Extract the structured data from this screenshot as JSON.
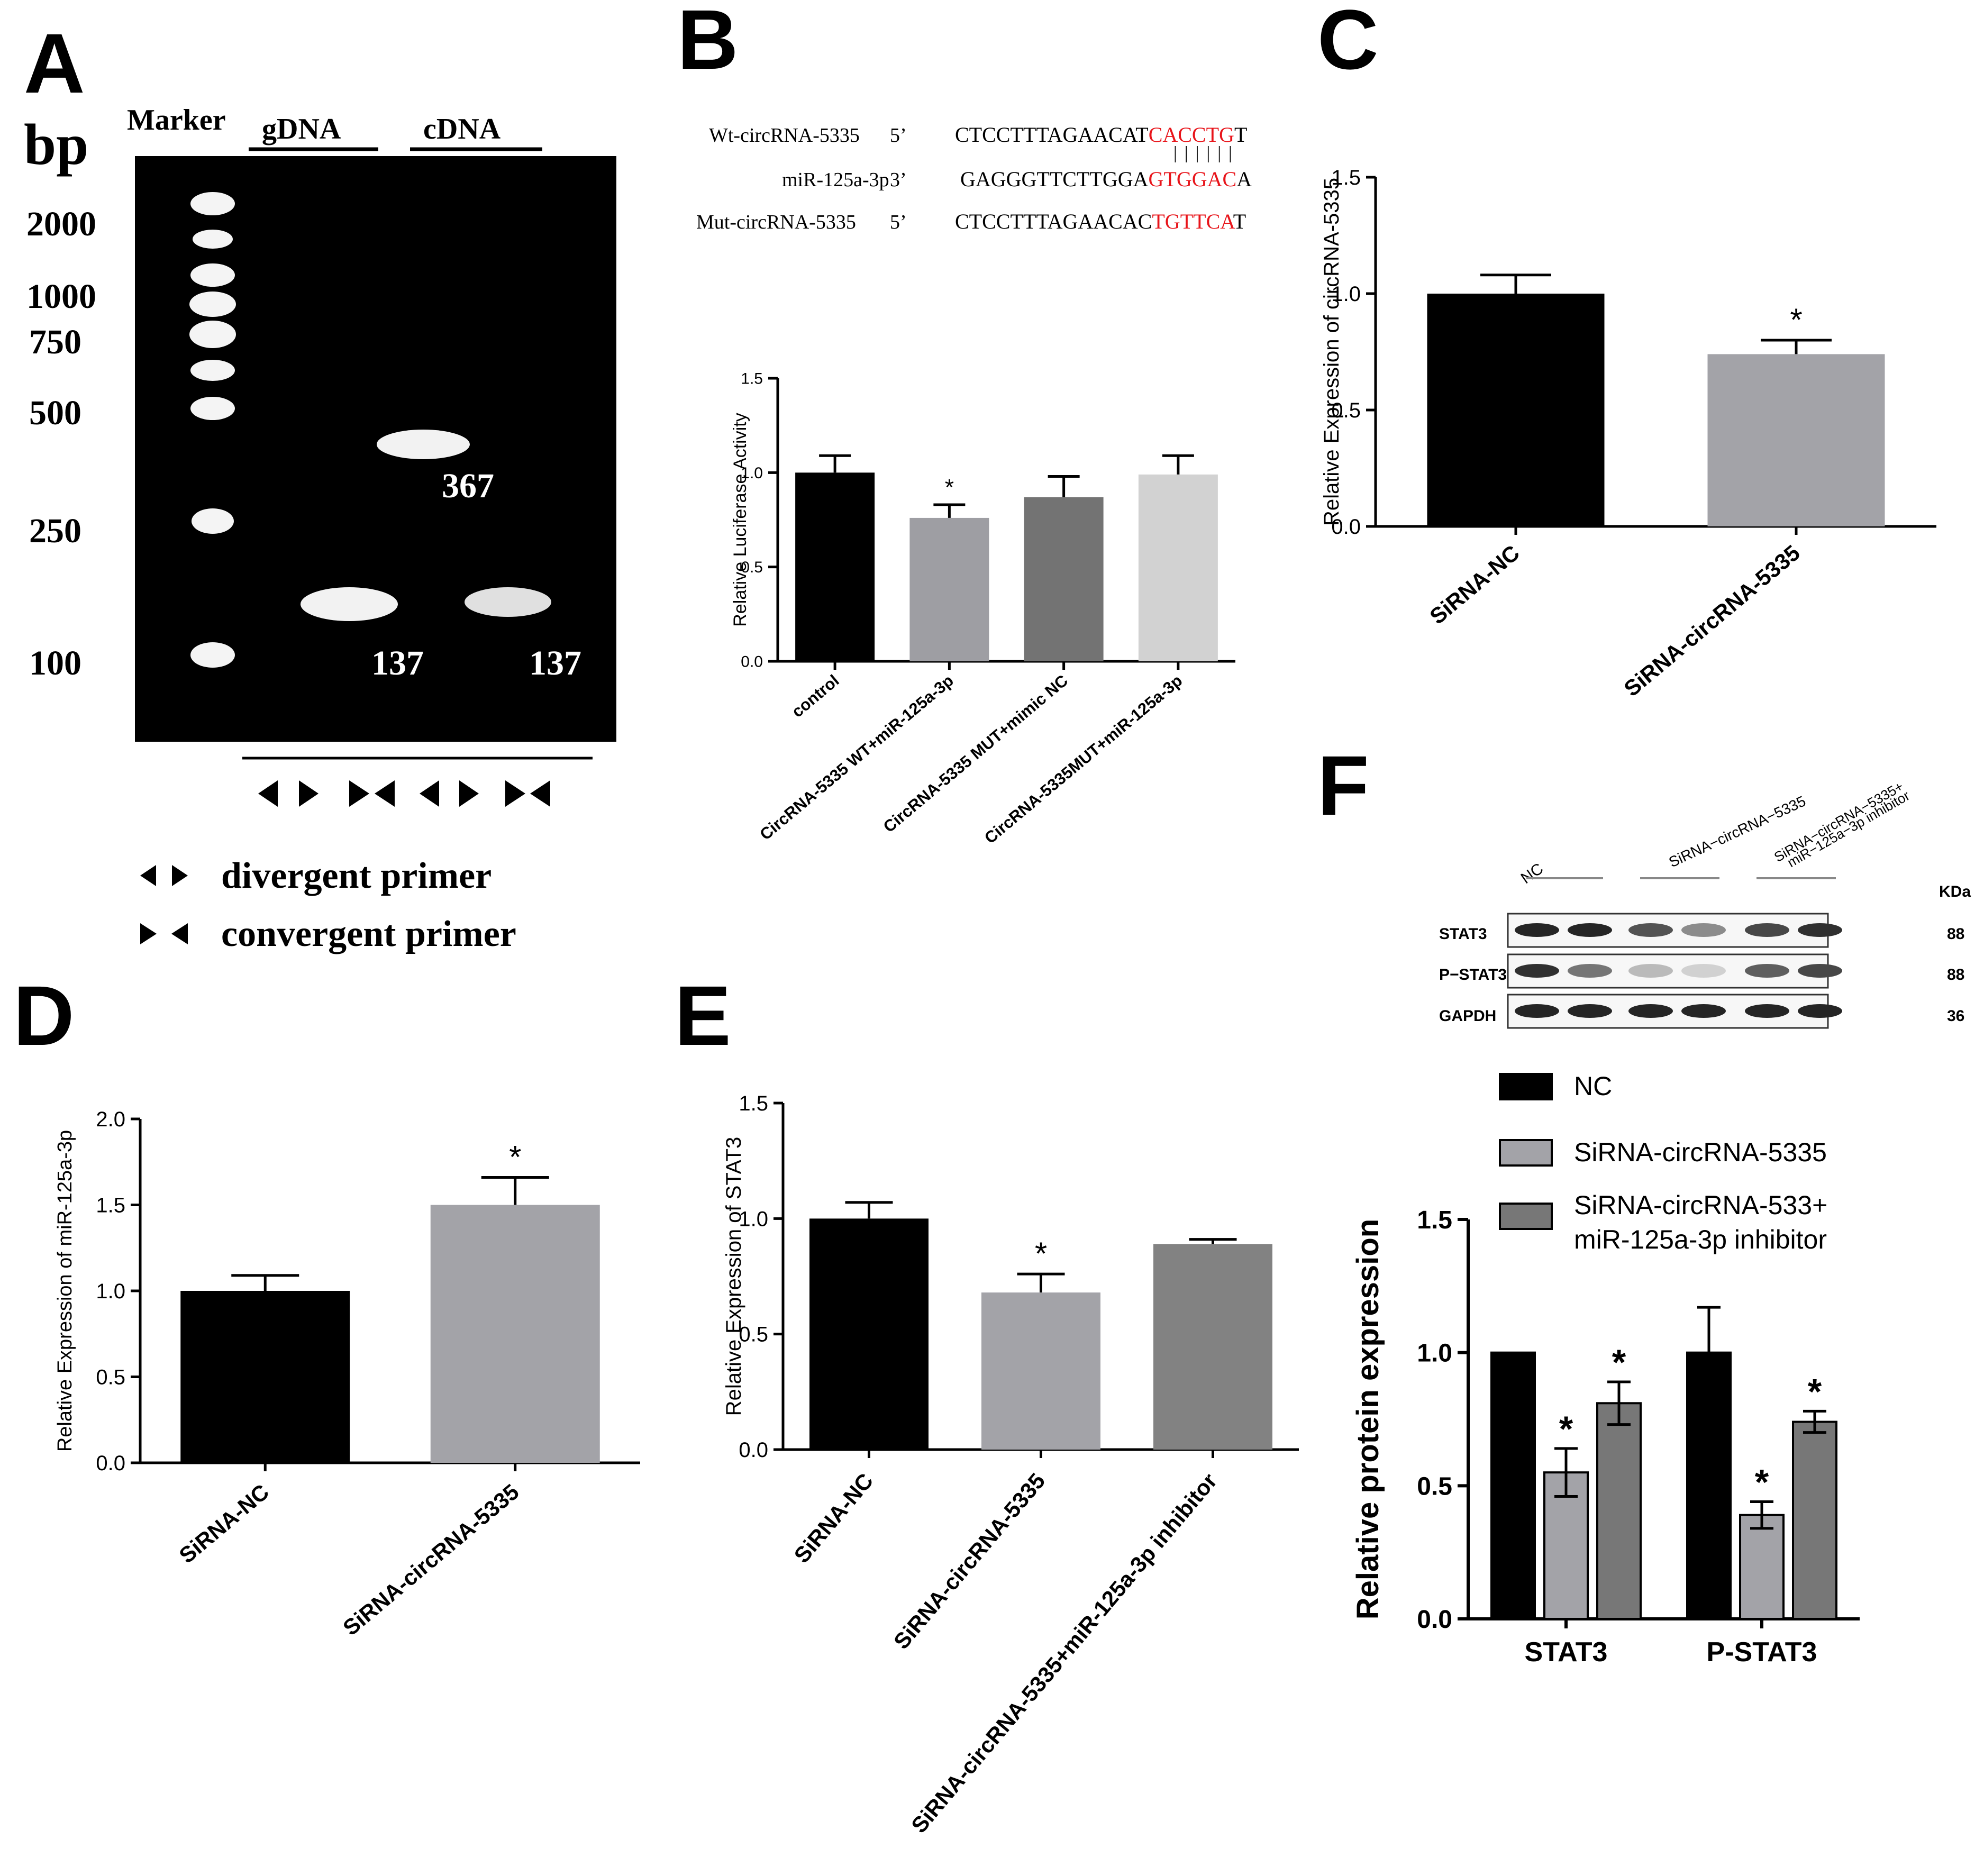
{
  "panels": {
    "A": {
      "letter": "A",
      "bp_label": "bp",
      "marker_label": "Marker",
      "gdna_label": "gDNA",
      "cdna_label": "cDNA",
      "ladder": [
        "2000",
        "1000",
        "750",
        "500",
        "250",
        "100"
      ],
      "band_labels": [
        "367",
        "137",
        "137"
      ],
      "legend": {
        "divergent": "divergent primer",
        "convergent": "convergent primer"
      },
      "colors": {
        "gel": "#000000",
        "band": "#ffffff"
      }
    },
    "B": {
      "letter": "B",
      "sequences": [
        {
          "name": "Wt-circRNA-5335",
          "dir": "5’",
          "black": "CTCCTTTAGAACAT",
          "red": "CACCTG",
          "tail": "T"
        },
        {
          "name": "miR-125a-3p",
          "dir": "3’",
          "black": "GAGGGTTCTTGGA",
          "red": "GTGGAC",
          "tail": "A"
        },
        {
          "name": "Mut-circRNA-5335",
          "dir": "5’",
          "black": "CTCCTTTAGAACAC",
          "red": "TGTTCA",
          "tail": "T"
        }
      ],
      "pairing": "||||||",
      "highlight_color": "#e8141a"
    },
    "F": {
      "letter": "F",
      "kda_label": "KDa",
      "lane_groups": [
        "NC",
        "SiRNA−circRNA−5335",
        "SiRNA−circRNA−5335+",
        "miR−125a−3p inhibitor"
      ],
      "blots": [
        {
          "name": "STAT3",
          "kda": "88"
        },
        {
          "name": "P−STAT3",
          "kda": "88"
        },
        {
          "name": "GAPDH",
          "kda": "36"
        }
      ]
    }
  },
  "chart_data": [
    {
      "panel": "B",
      "type": "bar",
      "ylabel": "Relative Luciferase Activity",
      "ylim": [
        0,
        1.5
      ],
      "yticks": [
        "0.0",
        "0.5",
        "1.0",
        "1.5"
      ],
      "categories": [
        "control",
        "CircRNA-5335 WT+miR-125a-3p",
        "CircRNA-5335 MUT+mimic NC",
        "CircRNA-5335MUT+miR-125a-3p"
      ],
      "values": [
        1.0,
        0.76,
        0.87,
        0.99
      ],
      "errors": [
        0.09,
        0.07,
        0.11,
        0.1
      ],
      "significance": [
        "",
        "*",
        "",
        ""
      ],
      "colors": [
        "#000000",
        "#9e9ea3",
        "#737373",
        "#d2d2d2"
      ]
    },
    {
      "panel": "C",
      "type": "bar",
      "ylabel": "Relative Expression of circRNA-5335",
      "ylim": [
        0,
        1.5
      ],
      "yticks": [
        "0.0",
        "0.5",
        "1.0",
        "1.5"
      ],
      "categories": [
        "SiRNA-NC",
        "SiRNA-circRNA-5335"
      ],
      "values": [
        1.0,
        0.74
      ],
      "errors": [
        0.08,
        0.06
      ],
      "significance": [
        "",
        "*"
      ],
      "colors": [
        "#000000",
        "#a3a3a8"
      ]
    },
    {
      "panel": "D",
      "type": "bar",
      "ylabel": "Relative Expression of miR-125a-3p",
      "ylim": [
        0,
        2.0
      ],
      "yticks": [
        "0.0",
        "0.5",
        "1.0",
        "1.5",
        "2.0"
      ],
      "categories": [
        "SiRNA-NC",
        "SiRNA-circRNA-5335"
      ],
      "values": [
        1.0,
        1.5
      ],
      "errors": [
        0.09,
        0.16
      ],
      "significance": [
        "",
        "*"
      ],
      "colors": [
        "#000000",
        "#a3a3a8"
      ]
    },
    {
      "panel": "E",
      "type": "bar",
      "ylabel": "Relative Expression of STAT3",
      "ylim": [
        0,
        1.5
      ],
      "yticks": [
        "0.0",
        "0.5",
        "1.0",
        "1.5"
      ],
      "categories": [
        "SiRNA-NC",
        "SiRNA-circRNA-5335",
        "SiRNA-circRNA-5335+miR-125a-3p inhibitor"
      ],
      "values": [
        1.0,
        0.68,
        0.89
      ],
      "errors": [
        0.07,
        0.08,
        0.02
      ],
      "significance": [
        "",
        "*",
        ""
      ],
      "colors": [
        "#000000",
        "#a3a3a8",
        "#828282"
      ]
    },
    {
      "panel": "F",
      "type": "bar",
      "ylabel": "Relative protein expression",
      "ylim": [
        0,
        1.5
      ],
      "yticks": [
        "0.0",
        "0.5",
        "1.0",
        "1.5"
      ],
      "categories": [
        "STAT3",
        "P-STAT3"
      ],
      "series": [
        {
          "name": "NC",
          "values": [
            1.0,
            1.0
          ],
          "errors": [
            0,
            0.17
          ],
          "significance": [
            "",
            ""
          ],
          "color": "#000000"
        },
        {
          "name": "SiRNA-circRNA-5335",
          "values": [
            0.55,
            0.39
          ],
          "errors": [
            0.09,
            0.05
          ],
          "significance": [
            "*",
            "*"
          ],
          "color": "#a3a3a8"
        },
        {
          "name": "SiRNA-circRNA-533+ miR-125a-3p inhibitor",
          "values": [
            0.81,
            0.74
          ],
          "errors": [
            0.08,
            0.04
          ],
          "significance": [
            "*",
            "*"
          ],
          "color": "#777777"
        }
      ],
      "legend_position": "top"
    }
  ]
}
